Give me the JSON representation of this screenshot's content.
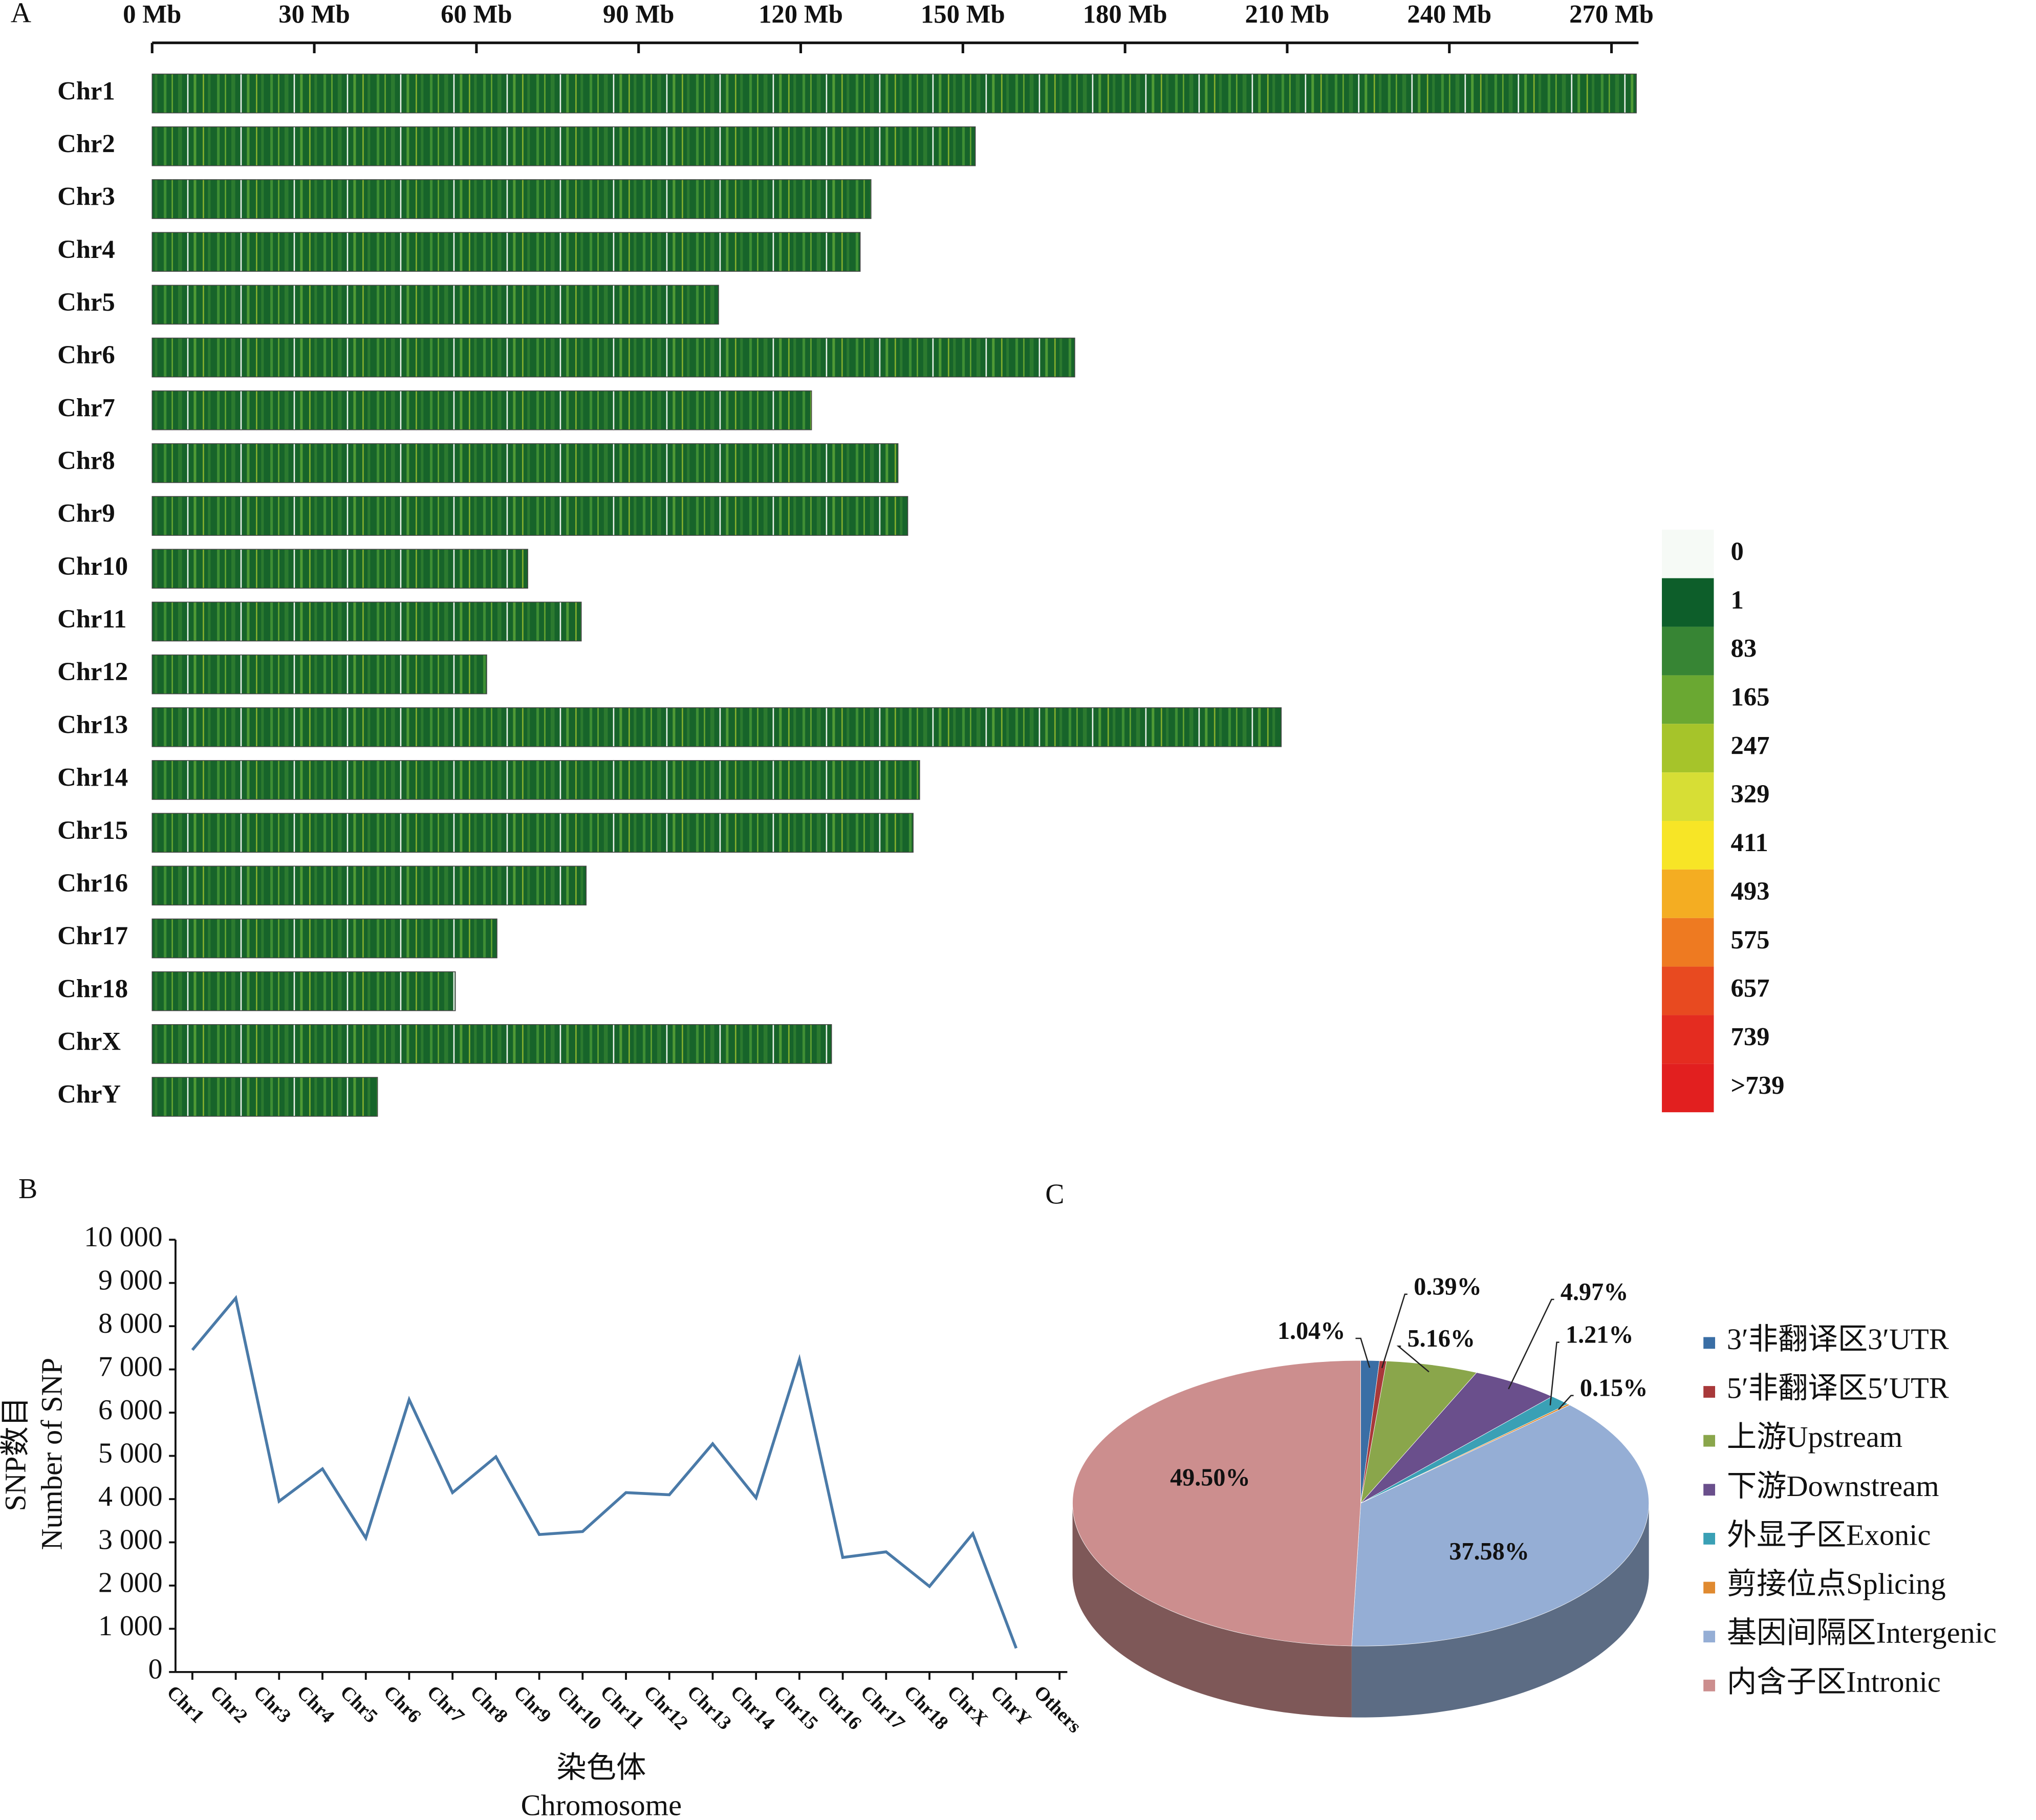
{
  "chart_data": [
    {
      "type": "ideogram",
      "panel": "A",
      "categories": [
        "Chr1",
        "Chr2",
        "Chr3",
        "Chr4",
        "Chr5",
        "Chr6",
        "Chr7",
        "Chr8",
        "Chr9",
        "Chr10",
        "Chr11",
        "Chr12",
        "Chr13",
        "Chr14",
        "Chr15",
        "Chr16",
        "Chr17",
        "Chr18",
        "ChrX",
        "ChrY"
      ],
      "values": [
        274.6,
        152.3,
        133.0,
        131.0,
        104.8,
        170.7,
        122.0,
        138.0,
        139.8,
        69.5,
        79.4,
        61.9,
        208.9,
        142.0,
        140.8,
        80.3,
        63.8,
        56.1,
        125.7,
        41.7
      ],
      "xlim": [
        0,
        275
      ],
      "xticks": [
        {
          "value": 0,
          "label": "0 Mb"
        },
        {
          "value": 30,
          "label": "30 Mb"
        },
        {
          "value": 60,
          "label": "60 Mb"
        },
        {
          "value": 90,
          "label": "90 Mb"
        },
        {
          "value": 120,
          "label": "120 Mb"
        },
        {
          "value": 150,
          "label": "150 Mb"
        },
        {
          "value": 180,
          "label": "180 Mb"
        },
        {
          "value": 210,
          "label": "210 Mb"
        },
        {
          "value": 240,
          "label": "240 Mb"
        },
        {
          "value": 270,
          "label": "270 Mb"
        }
      ],
      "color_scale": {
        "labels": [
          0,
          1,
          83,
          165,
          247,
          329,
          411,
          493,
          575,
          657,
          739,
          ">739"
        ],
        "colors": [
          "#f6faf6",
          "#0d5e2a",
          "#378534",
          "#6aa832",
          "#a6c42a",
          "#d7de35",
          "#f7e526",
          "#f4ad22",
          "#ee7a21",
          "#e84a20",
          "#e42c20",
          "#e21f1f"
        ]
      }
    },
    {
      "type": "line",
      "panel": "B",
      "ylabel": [
        "SNP数目",
        "Number of SNP"
      ],
      "xlabel": [
        "染色体",
        "Chromosome"
      ],
      "categories": [
        "Chr1",
        "Chr2",
        "Chr3",
        "Chr4",
        "Chr5",
        "Chr6",
        "Chr7",
        "Chr8",
        "Chr9",
        "Chr10",
        "Chr11",
        "Chr12",
        "Chr13",
        "Chr14",
        "Chr15",
        "Chr16",
        "Chr17",
        "Chr18",
        "ChrX",
        "ChrY",
        "Others"
      ],
      "series": [
        {
          "color": "#4a7aa8",
          "values": [
            7450,
            8650,
            3950,
            4700,
            3100,
            6300,
            4150,
            4980,
            3180,
            3250,
            4150,
            4100,
            5280,
            4030,
            7230,
            2650,
            2780,
            1980,
            3200,
            550,
            null
          ]
        }
      ],
      "ylim": [
        0,
        10000
      ],
      "yticks": [
        0,
        {
          "value": 1000,
          "label": "1 000"
        },
        {
          "value": 2000,
          "label": "2 000"
        },
        {
          "value": 3000,
          "label": "3 000"
        },
        {
          "value": 4000,
          "label": "4 000"
        },
        {
          "value": 5000,
          "label": "5 000"
        },
        {
          "value": 6000,
          "label": "6 000"
        },
        {
          "value": 7000,
          "label": "7 000"
        },
        {
          "value": 8000,
          "label": "8 000"
        },
        {
          "value": 9000,
          "label": "9 000"
        },
        {
          "value": 10000,
          "label": "10 000"
        }
      ]
    },
    {
      "type": "pie",
      "panel": "C",
      "categories": [
        "3′非翻译区3′UTR",
        "5′非翻译区5′UTR",
        "上游Upstream",
        "下游Downstream",
        "外显子区Exonic",
        "剪接位点Splicing",
        "基因间隔区Intergenic",
        "内含子区Intronic"
      ],
      "values": [
        1.04,
        0.39,
        5.16,
        4.97,
        1.21,
        0.15,
        37.58,
        49.5
      ],
      "value_labels": [
        "1.04%",
        "0.39%",
        "5.16%",
        "4.97%",
        "1.21%",
        "0.15%",
        "37.58%",
        "49.50%"
      ],
      "colors": [
        "#3a6ea5",
        "#a8393a",
        "#8aa64b",
        "#6a4f8c",
        "#3aa0b5",
        "#e08a30",
        "#95aed5",
        "#cc8e8e"
      ]
    }
  ]
}
